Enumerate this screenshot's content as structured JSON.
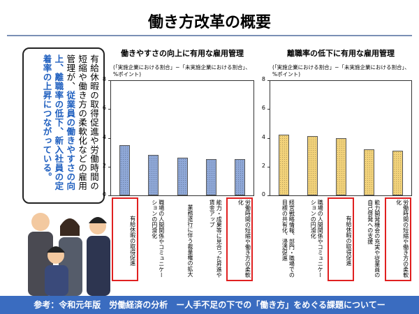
{
  "title": "働き方改革の概要",
  "callout": {
    "text": "有給休暇の取得促進や労働時間の短縮や働き方の柔軟化などの雇用管理が、",
    "emphasis": "従業員の働きやすさの向上、離職率の低下、新入社員の定着率の上昇につながっている。"
  },
  "footer": "参考：令和元年版　労働経済の分析　ー人手不足の下での「働き方」をめぐる課題についてー",
  "chart_data": [
    {
      "type": "bar",
      "title": "働きやすさの向上に有用な雇用管理",
      "subtitle": "(「実施企業における割合」−「未実施企業における割合」、%ポイント)",
      "categories": [
        "有給休暇の取得促進",
        "職場の人間関係やコミュニケーションの円滑化",
        "業務遂行に伴う裁量権の拡大",
        "能力・成果等に見合った昇進や賃金アップ",
        "労働時間の短縮や働き方の柔軟化"
      ],
      "values": [
        3.5,
        2.8,
        2.6,
        2.5,
        2.5
      ],
      "color": "#8fa8d8",
      "highlight": [
        0,
        4
      ],
      "ylim": [
        0,
        8
      ],
      "yticks": [
        0,
        2,
        4,
        6,
        8
      ]
    },
    {
      "type": "bar",
      "title": "離職率の低下に有用な雇用管理",
      "subtitle": "(「実施企業における割合」−「未実施企業における割合」、%ポイント)",
      "categories": [
        "経営戦略情報、部門・職場での目標の共有化、浸透促進",
        "職場の人間関係やコミュニケーションの円滑化",
        "有給休暇の取得促進",
        "能力開発機会の充実や従業員の自己啓発への支援",
        "労働時間の短縮や働き方の柔軟化"
      ],
      "values": [
        4.2,
        4.1,
        4.0,
        3.2,
        3.1
      ],
      "color": "#f2d27a",
      "highlight": [
        2,
        4
      ],
      "ylim": [
        0,
        8
      ],
      "yticks": [
        0,
        2,
        4,
        6,
        8
      ]
    }
  ]
}
